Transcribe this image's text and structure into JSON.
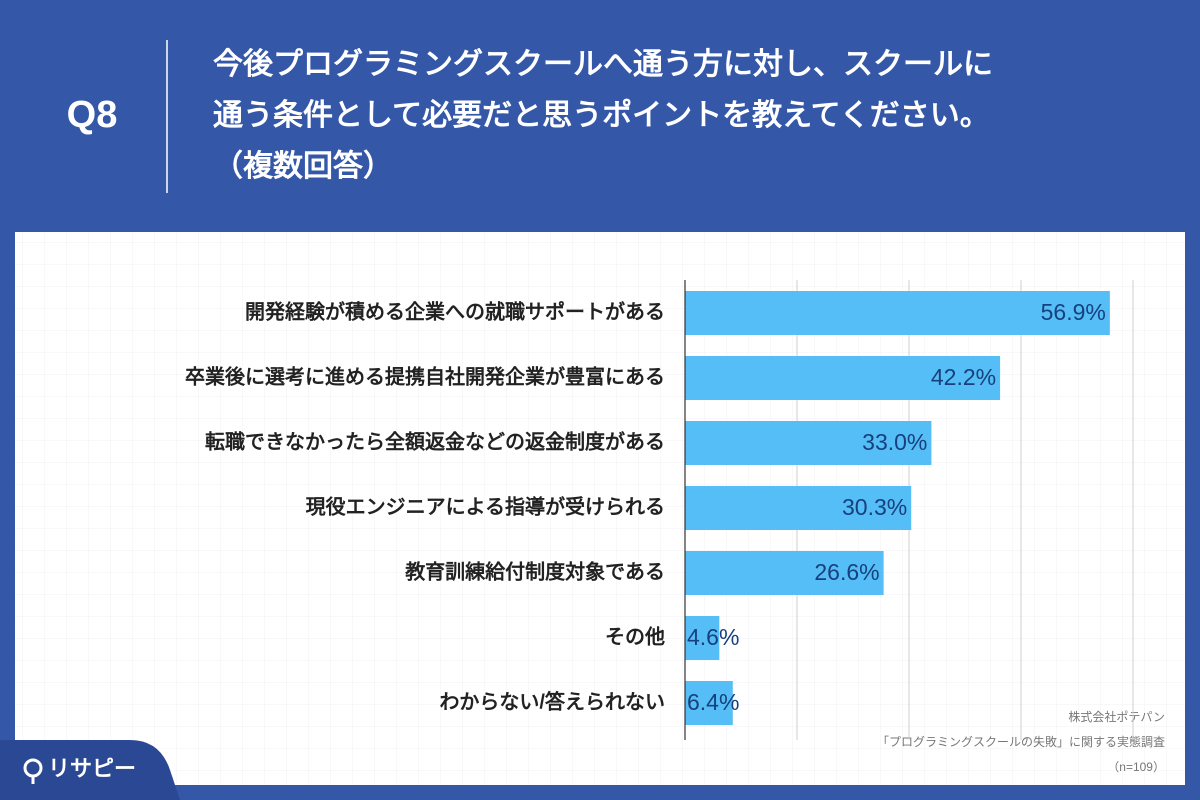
{
  "header": {
    "question": "Q8",
    "title": [
      "今後プログラミングスクールへ通う方に対し、スクールに",
      "通う条件として必要だと思うポイントを教えてください。",
      "（複数回答）"
    ]
  },
  "footer": {
    "source": [
      "株式会社ポテパン",
      "「プログラミングスクールの失敗」に関する実態調査",
      "（n=109）"
    ],
    "brand": "リサピー"
  },
  "chart_data": {
    "type": "hbar",
    "categories": [
      "開発経験が積める企業への就職サポートがある",
      "卒業後に選考に進める提携自社開発企業が豊富にある",
      "転職できなかったら全額返金などの返金制度がある",
      "現役エンジニアによる指導が受けられる",
      "教育訓練給付制度対象である",
      "その他",
      "わからない/答えられない"
    ],
    "values": [
      56.9,
      42.2,
      33.0,
      30.3,
      26.6,
      4.6,
      6.4
    ],
    "value_labels": [
      "56.9%",
      "42.2%",
      "33.0%",
      "30.3%",
      "26.6%",
      "4.6%",
      "6.4%"
    ],
    "color": "#55bef6",
    "xlim": [
      0,
      60
    ],
    "xticks": [
      0,
      15,
      30,
      45,
      60
    ],
    "grid": true
  }
}
